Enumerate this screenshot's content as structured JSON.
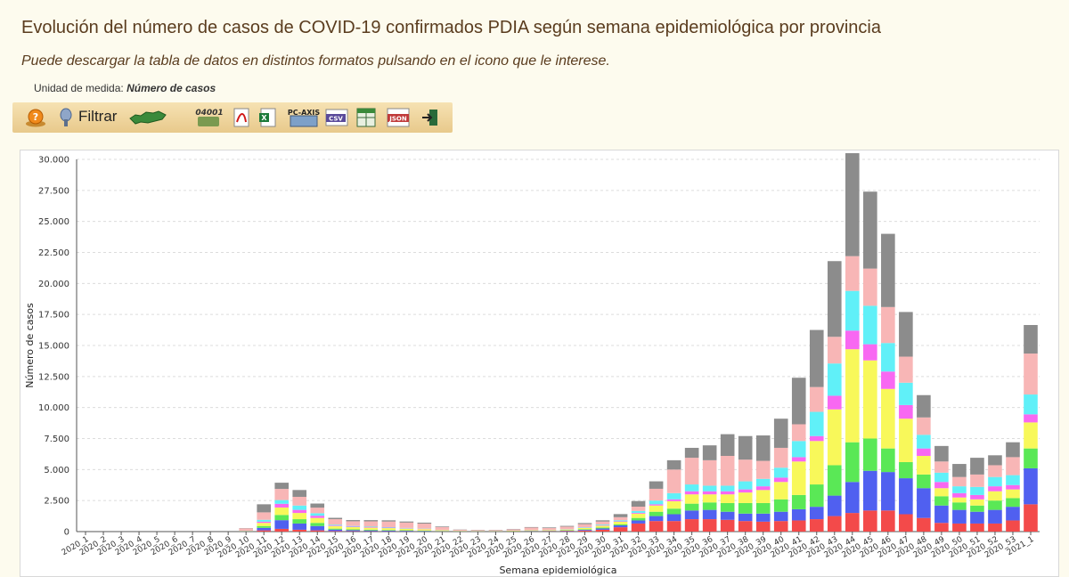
{
  "header": {
    "title": "Evolución del número de casos de COVID-19 confirmados PDIA según semana epidemiológica por provincia",
    "subtitle": "Puede descargar la tabla de datos en distintos formatos pulsando en el icono que le interese.",
    "unit_label": "Unidad de medida:",
    "unit_value": "Número de casos"
  },
  "toolbar": {
    "filter_label": "Filtrar",
    "code_badge": "04001",
    "pcaxis_label": "PC-AXIS",
    "csv_label": "CSV",
    "json_label": "JSON",
    "icons": [
      "help-icon",
      "filter-icon",
      "andalucia-map-icon",
      "code-04001-icon",
      "pdf-icon",
      "excel-icon",
      "pc-axis-icon",
      "csv-icon",
      "spreadsheet-icon",
      "json-icon",
      "exit-icon"
    ]
  },
  "colors": {
    "toolbar_bg": "#f0d8a0",
    "title": "#5a3c1e"
  },
  "chart_data": {
    "type": "bar",
    "stacked": true,
    "xlabel": "Semana epidemiológica",
    "ylabel": "Número de casos",
    "ylim": [
      0,
      30000
    ],
    "yticks": [
      0,
      2500,
      5000,
      7500,
      10000,
      12500,
      15000,
      17500,
      20000,
      22500,
      25000,
      27500,
      30000
    ],
    "ytick_labels": [
      "0",
      "2.500",
      "5.000",
      "7.500",
      "10.000",
      "12.500",
      "15.000",
      "17.500",
      "20.000",
      "22.500",
      "25.000",
      "27.500",
      "30.000"
    ],
    "grid": true,
    "categories": [
      "2020_1",
      "2020_2",
      "2020_3",
      "2020_4",
      "2020_5",
      "2020_6",
      "2020_7",
      "2020_8",
      "2020_9",
      "2020_10",
      "2020_11",
      "2020_12",
      "2020_13",
      "2020_14",
      "2020_15",
      "2020_16",
      "2020_17",
      "2020_18",
      "2020_19",
      "2020_20",
      "2020_21",
      "2020_22",
      "2020_23",
      "2020_24",
      "2020_25",
      "2020_26",
      "2020_27",
      "2020_28",
      "2020_29",
      "2020_30",
      "2020_31",
      "2020_32",
      "2020_33",
      "2020_34",
      "2020_35",
      "2020_36",
      "2020_37",
      "2020_38",
      "2020_39",
      "2020_40",
      "2020_41",
      "2020_42",
      "2020_43",
      "2020_44",
      "2020_45",
      "2020_46",
      "2020_47",
      "2020_48",
      "2020_49",
      "2020_50",
      "2020_51",
      "2020_52",
      "2020_53",
      "2021_1"
    ],
    "series": [
      {
        "color": "#f34a4a",
        "values": [
          0,
          0,
          0,
          0,
          0,
          0,
          0,
          0,
          0,
          10,
          100,
          220,
          150,
          100,
          40,
          30,
          25,
          20,
          15,
          10,
          10,
          5,
          5,
          5,
          10,
          20,
          30,
          40,
          80,
          150,
          350,
          650,
          850,
          850,
          1000,
          1000,
          950,
          850,
          800,
          850,
          900,
          1000,
          1250,
          1500,
          1700,
          1700,
          1400,
          1100,
          700,
          650,
          650,
          650,
          900,
          2200
        ]
      },
      {
        "color": "#5060f0",
        "values": [
          0,
          0,
          0,
          0,
          0,
          0,
          0,
          0,
          0,
          10,
          200,
          700,
          500,
          350,
          120,
          90,
          70,
          60,
          50,
          40,
          20,
          10,
          10,
          10,
          15,
          25,
          25,
          40,
          60,
          100,
          150,
          250,
          400,
          550,
          700,
          750,
          650,
          600,
          650,
          750,
          900,
          1000,
          1650,
          2500,
          3200,
          3100,
          2900,
          2400,
          1400,
          1100,
          950,
          1100,
          1100,
          2900
        ]
      },
      {
        "color": "#5ae856",
        "values": [
          0,
          0,
          0,
          0,
          0,
          0,
          0,
          0,
          0,
          10,
          150,
          420,
          350,
          250,
          80,
          60,
          60,
          50,
          40,
          30,
          20,
          10,
          10,
          10,
          10,
          20,
          20,
          30,
          50,
          70,
          90,
          200,
          350,
          450,
          550,
          600,
          700,
          850,
          850,
          1000,
          1150,
          1800,
          2450,
          3200,
          2600,
          1900,
          1300,
          1100,
          750,
          600,
          500,
          750,
          700,
          1600
        ]
      },
      {
        "color": "#f8f85a",
        "values": [
          0,
          0,
          0,
          0,
          0,
          0,
          0,
          0,
          0,
          20,
          250,
          600,
          500,
          400,
          200,
          180,
          160,
          150,
          130,
          120,
          60,
          30,
          20,
          20,
          40,
          40,
          40,
          60,
          100,
          150,
          200,
          350,
          500,
          600,
          750,
          650,
          700,
          850,
          1050,
          1400,
          2700,
          3500,
          4500,
          7500,
          6300,
          4800,
          3500,
          1500,
          650,
          400,
          500,
          750,
          700,
          2100
        ]
      },
      {
        "color": "#f868f2",
        "values": [
          0,
          0,
          0,
          0,
          0,
          0,
          0,
          0,
          0,
          5,
          100,
          300,
          250,
          180,
          50,
          40,
          40,
          40,
          30,
          20,
          10,
          5,
          5,
          5,
          5,
          10,
          10,
          10,
          20,
          30,
          40,
          60,
          100,
          150,
          250,
          250,
          250,
          250,
          300,
          350,
          350,
          400,
          1100,
          1500,
          1300,
          1400,
          1100,
          600,
          500,
          350,
          350,
          400,
          350,
          650
        ]
      },
      {
        "color": "#60f0f8",
        "values": [
          0,
          0,
          0,
          0,
          0,
          0,
          0,
          0,
          0,
          10,
          150,
          300,
          350,
          200,
          60,
          50,
          40,
          40,
          30,
          20,
          10,
          5,
          5,
          5,
          5,
          10,
          10,
          20,
          40,
          60,
          80,
          150,
          300,
          500,
          550,
          450,
          450,
          650,
          600,
          800,
          1300,
          1950,
          2600,
          3200,
          3100,
          2300,
          1800,
          1100,
          750,
          550,
          650,
          750,
          800,
          1600
        ]
      },
      {
        "color": "#f8b6b6",
        "values": [
          0,
          0,
          0,
          0,
          0,
          0,
          0,
          0,
          0,
          200,
          600,
          900,
          700,
          450,
          450,
          380,
          430,
          450,
          430,
          400,
          230,
          80,
          60,
          60,
          90,
          200,
          150,
          200,
          250,
          250,
          250,
          350,
          950,
          1900,
          2150,
          2050,
          2400,
          1750,
          1450,
          1600,
          1350,
          2000,
          2150,
          2800,
          3000,
          2900,
          2100,
          1400,
          900,
          750,
          1000,
          950,
          1450,
          3300
        ]
      },
      {
        "color": "#8c8c8c",
        "values": [
          0,
          0,
          0,
          0,
          0,
          0,
          0,
          0,
          0,
          20,
          650,
          500,
          550,
          330,
          110,
          100,
          100,
          100,
          90,
          80,
          50,
          20,
          20,
          20,
          30,
          40,
          50,
          60,
          90,
          100,
          250,
          450,
          600,
          750,
          800,
          1200,
          1750,
          1900,
          2050,
          2350,
          3750,
          4600,
          6100,
          8300,
          6200,
          5900,
          3600,
          1800,
          1250,
          1050,
          1350,
          800,
          1200,
          2300
        ]
      }
    ]
  }
}
